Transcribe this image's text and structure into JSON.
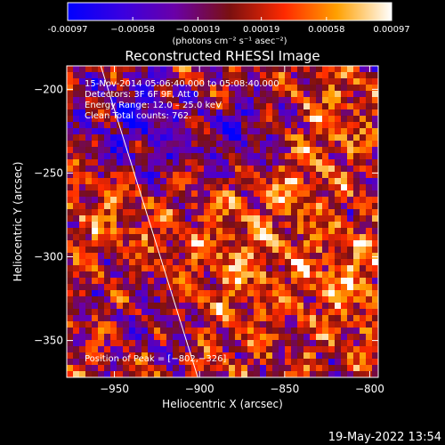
{
  "chart_data": {
    "type": "heatmap",
    "title": "Reconstructed RHESSI Image",
    "xlabel": "Heliocentric X (arcsec)",
    "ylabel": "Heliocentric Y (arcsec)",
    "xlim": [
      -978,
      -795
    ],
    "ylim": [
      -372,
      -186
    ],
    "x_ticks": [
      -950,
      -900,
      -850,
      -800
    ],
    "y_ticks": [
      -200,
      -250,
      -300,
      -350
    ],
    "x_tick_labels": [
      "−950",
      "−900",
      "−850",
      "−800"
    ],
    "y_tick_labels": [
      "−200",
      "−250",
      "−300",
      "−350"
    ],
    "colorbar": {
      "range": [
        -0.00097,
        0.00097
      ],
      "tick_values": [
        -0.00097,
        -0.00058,
        -0.00019,
        0.00019,
        0.00058,
        0.00097
      ],
      "tick_labels": [
        "-0.00097",
        "−0.00058",
        "−0.00019",
        "0.00019",
        "0.00058",
        "0.00097"
      ],
      "unit_label": "(photons cm⁻² s⁻¹ asec⁻²)"
    },
    "annotations": [
      "15-Nov-2014 05:06:40.000 to 05:08:40.000",
      "Detectors: 3F 6F 9F, Att 0",
      "Energy Range: 12.0 – 25.0 keV",
      "Clean    Total counts: 762."
    ],
    "peak_label": "Position of Peak = [−802,−326]",
    "peak_position": [
      -802,
      -326
    ],
    "limb_line": [
      [
        -958,
        -186
      ],
      [
        -901,
        -372
      ]
    ],
    "timestamp": "19-May-2022 13:54"
  }
}
